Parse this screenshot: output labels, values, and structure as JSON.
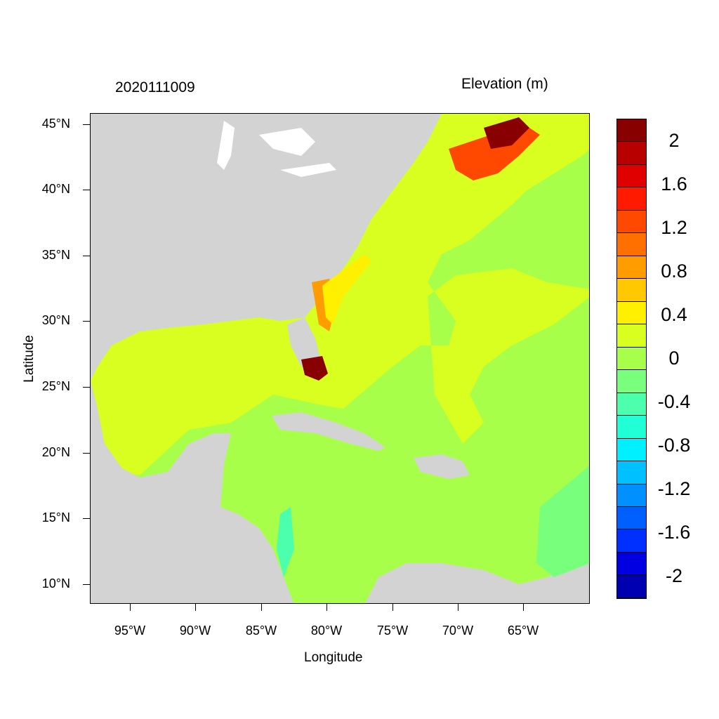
{
  "header": {
    "date_label": "2020111009",
    "variable_label": "Elevation (m)"
  },
  "axes": {
    "xlabel": "Longitude",
    "ylabel": "Latitude",
    "xticks": [
      "95°W",
      "90°W",
      "85°W",
      "80°W",
      "75°W",
      "70°W",
      "65°W"
    ],
    "yticks": [
      "45°N",
      "40°N",
      "35°N",
      "30°N",
      "25°N",
      "20°N",
      "15°N",
      "10°N"
    ]
  },
  "colorbar": {
    "colors": [
      "#880000",
      "#b80000",
      "#e00000",
      "#ff1a00",
      "#ff4800",
      "#ff7000",
      "#ff9c00",
      "#ffc800",
      "#fff000",
      "#d8ff20",
      "#a8ff4a",
      "#78ff7c",
      "#4cffac",
      "#20ffd6",
      "#00f0ff",
      "#00c0ff",
      "#0090ff",
      "#0060ff",
      "#0030ff",
      "#0000e0",
      "#0000b0"
    ],
    "labels": [
      "2",
      "1.6",
      "1.2",
      "0.8",
      "0.4",
      "0",
      "-0.4",
      "-0.8",
      "-1.2",
      "-1.6",
      "-2"
    ]
  },
  "map_colors": {
    "land": "#d3d3d3",
    "water_body": "#ffffff",
    "ocean_low": "#a8ff4a",
    "ocean_mid": "#d8ff20",
    "surge_high": "#880000"
  }
}
